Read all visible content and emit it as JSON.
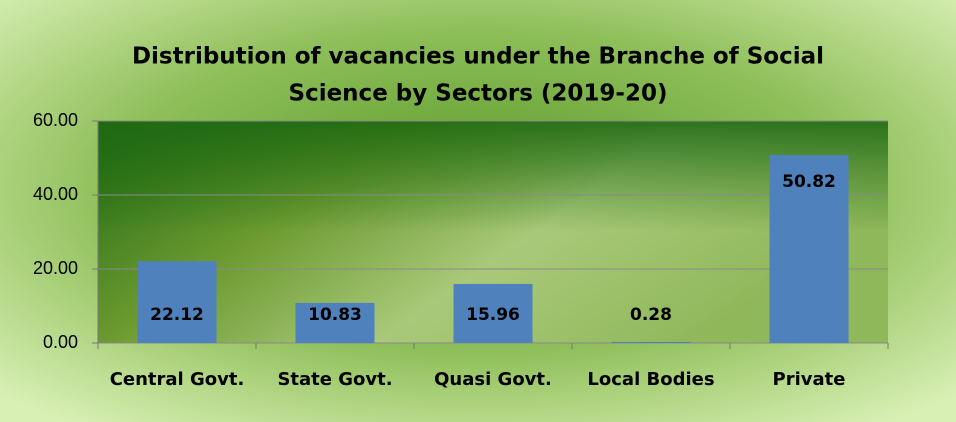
{
  "chart_data": {
    "type": "bar",
    "title": [
      "Distribution of  vacancies  under the Branche of Social",
      "Science by Sectors (2019-20)"
    ],
    "categories": [
      "Central Govt.",
      "State Govt.",
      "Quasi Govt.",
      "Local Bodies",
      "Private"
    ],
    "values": [
      22.12,
      10.83,
      15.96,
      0.28,
      50.82
    ],
    "color": "#4f81bd",
    "ylim": [
      0,
      60
    ],
    "yticks": [
      {
        "value": 0,
        "label": "0.00"
      },
      {
        "value": 20,
        "label": "20.00"
      },
      {
        "value": 40,
        "label": "40.00"
      },
      {
        "value": 60,
        "label": "60.00"
      }
    ],
    "grid": true
  }
}
